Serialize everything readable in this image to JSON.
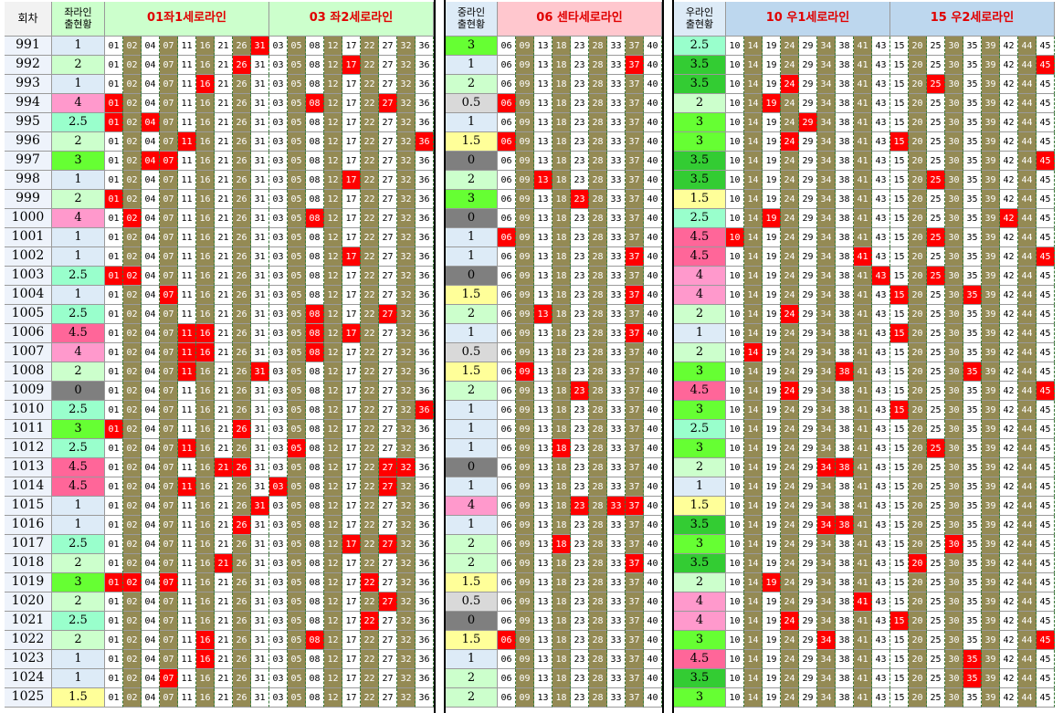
{
  "header": {
    "round": "회차",
    "sections": [
      {
        "status_label": "좌라인\n출현황",
        "groups": [
          {
            "title": "01좌1세로라인",
            "numbers": [
              "01",
              "02",
              "04",
              "07",
              "11",
              "16",
              "21",
              "26",
              "31"
            ]
          },
          {
            "title": "03 좌2세로라인",
            "numbers": [
              "03",
              "05",
              "08",
              "12",
              "17",
              "22",
              "27",
              "32",
              "36"
            ]
          }
        ]
      },
      {
        "status_label": "중라인\n출현황",
        "groups": [
          {
            "title": "06 센타세로라인",
            "numbers": [
              "06",
              "09",
              "13",
              "18",
              "23",
              "28",
              "33",
              "37",
              "40"
            ]
          }
        ]
      },
      {
        "status_label": "우라인\n출현황",
        "groups": [
          {
            "title": "10 우1세로라인",
            "numbers": [
              "10",
              "14",
              "19",
              "24",
              "29",
              "34",
              "38",
              "41",
              "43"
            ]
          },
          {
            "title": "15 우2세로라인",
            "numbers": [
              "15",
              "20",
              "25",
              "30",
              "35",
              "39",
              "42",
              "44",
              "45"
            ]
          }
        ]
      }
    ]
  },
  "status_colors": {
    "0": "#7f7f7f",
    "0.5": "#d9d9d9",
    "1": "#ddebf7",
    "1.5": "#ffff99",
    "2": "#ccffcc",
    "2.5": "#99ffcc",
    "3": "#66ff33",
    "3.5": "#33cc33",
    "4": "#ff99cc",
    "4.5": "#ff6699"
  },
  "rows": [
    {
      "round": 991,
      "status": [
        1,
        3,
        2.5
      ],
      "hits": [
        [
          8
        ],
        [],
        [],
        [],
        []
      ]
    },
    {
      "round": 992,
      "status": [
        2,
        1,
        3.5
      ],
      "hits": [
        [
          7
        ],
        [
          4
        ],
        [
          7
        ],
        [],
        [
          8
        ]
      ]
    },
    {
      "round": 993,
      "status": [
        1,
        2,
        3.5
      ],
      "hits": [
        [
          5
        ],
        [],
        [],
        [
          3
        ],
        [
          2
        ]
      ]
    },
    {
      "round": 994,
      "status": [
        4,
        0.5,
        2
      ],
      "hits": [
        [
          0
        ],
        [
          2,
          6
        ],
        [
          0
        ],
        [
          2
        ],
        []
      ]
    },
    {
      "round": 995,
      "status": [
        2.5,
        1,
        3
      ],
      "hits": [
        [
          0,
          2
        ],
        [],
        [],
        [
          4
        ],
        []
      ]
    },
    {
      "round": 996,
      "status": [
        2,
        1.5,
        3
      ],
      "hits": [
        [
          4
        ],
        [
          8
        ],
        [
          0
        ],
        [
          3
        ],
        [
          0
        ]
      ]
    },
    {
      "round": 997,
      "status": [
        3,
        0,
        3.5
      ],
      "hits": [
        [
          2,
          3
        ],
        [],
        [],
        [],
        [
          8
        ]
      ]
    },
    {
      "round": 998,
      "status": [
        1,
        2,
        3.5
      ],
      "hits": [
        [],
        [
          4
        ],
        [
          2
        ],
        [],
        [
          2
        ]
      ]
    },
    {
      "round": 999,
      "status": [
        2,
        3,
        1.5
      ],
      "hits": [
        [
          0
        ],
        [],
        [
          4
        ],
        [],
        []
      ]
    },
    {
      "round": 1000,
      "status": [
        4,
        0,
        2.5
      ],
      "hits": [
        [
          1
        ],
        [
          2
        ],
        [],
        [
          2
        ],
        [
          6
        ]
      ]
    },
    {
      "round": 1001,
      "status": [
        1,
        1,
        4.5
      ],
      "hits": [
        [],
        [],
        [
          0
        ],
        [
          0
        ],
        [
          2
        ]
      ]
    },
    {
      "round": 1002,
      "status": [
        1,
        1,
        4.5
      ],
      "hits": [
        [],
        [
          4
        ],
        [
          7
        ],
        [
          7
        ],
        [
          8
        ]
      ]
    },
    {
      "round": 1003,
      "status": [
        2.5,
        0,
        4
      ],
      "hits": [
        [
          0,
          1
        ],
        [],
        [],
        [
          8
        ],
        [
          2
        ]
      ]
    },
    {
      "round": 1004,
      "status": [
        1,
        1.5,
        4
      ],
      "hits": [
        [
          3
        ],
        [],
        [
          7
        ],
        [],
        [
          0,
          4
        ]
      ]
    },
    {
      "round": 1005,
      "status": [
        2.5,
        2,
        2
      ],
      "hits": [
        [],
        [
          2,
          6
        ],
        [
          2
        ],
        [
          3
        ],
        []
      ]
    },
    {
      "round": 1006,
      "status": [
        4.5,
        1,
        1
      ],
      "hits": [
        [
          4,
          5
        ],
        [
          2,
          4
        ],
        [
          7
        ],
        [],
        [
          0
        ]
      ]
    },
    {
      "round": 1007,
      "status": [
        4,
        0.5,
        2
      ],
      "hits": [
        [
          4,
          5
        ],
        [
          2
        ],
        [],
        [
          1
        ],
        []
      ]
    },
    {
      "round": 1008,
      "status": [
        2,
        1.5,
        3
      ],
      "hits": [
        [
          4,
          8
        ],
        [],
        [
          1
        ],
        [
          6
        ],
        [
          4
        ]
      ]
    },
    {
      "round": 1009,
      "status": [
        0,
        2,
        4.5
      ],
      "hits": [
        [],
        [],
        [
          4
        ],
        [
          3
        ],
        [
          8
        ]
      ]
    },
    {
      "round": 1010,
      "status": [
        2.5,
        1,
        3
      ],
      "hits": [
        [],
        [
          8
        ],
        [],
        [],
        [
          0
        ]
      ]
    },
    {
      "round": 1011,
      "status": [
        3,
        1,
        2.5
      ],
      "hits": [
        [
          0,
          7
        ],
        [],
        [],
        [],
        []
      ]
    },
    {
      "round": 1012,
      "status": [
        2.5,
        1,
        3
      ],
      "hits": [
        [
          4
        ],
        [
          1
        ],
        [
          3
        ],
        [],
        [
          2
        ]
      ]
    },
    {
      "round": 1013,
      "status": [
        4.5,
        0,
        2
      ],
      "hits": [
        [
          6,
          7
        ],
        [
          6,
          7
        ],
        [],
        [
          5,
          6
        ],
        []
      ]
    },
    {
      "round": 1014,
      "status": [
        4.5,
        1,
        1
      ],
      "hits": [
        [
          4
        ],
        [
          0,
          6
        ],
        [],
        [],
        []
      ]
    },
    {
      "round": 1015,
      "status": [
        1,
        4,
        1.5
      ],
      "hits": [
        [
          8
        ],
        [],
        [
          4,
          6,
          7
        ],
        [],
        []
      ]
    },
    {
      "round": 1016,
      "status": [
        1,
        1,
        3.5
      ],
      "hits": [
        [
          7
        ],
        [],
        [],
        [
          5,
          6
        ],
        []
      ]
    },
    {
      "round": 1017,
      "status": [
        2.5,
        2,
        3
      ],
      "hits": [
        [],
        [
          4,
          6
        ],
        [
          3
        ],
        [],
        [
          3
        ]
      ]
    },
    {
      "round": 1018,
      "status": [
        2,
        2,
        3.5
      ],
      "hits": [
        [
          6
        ],
        [],
        [
          7
        ],
        [],
        [
          1
        ]
      ]
    },
    {
      "round": 1019,
      "status": [
        3,
        1.5,
        2
      ],
      "hits": [
        [
          0,
          1,
          3
        ],
        [
          5
        ],
        [],
        [
          2
        ],
        []
      ]
    },
    {
      "round": 1020,
      "status": [
        2,
        0.5,
        4
      ],
      "hits": [
        [],
        [
          6
        ],
        [],
        [
          7
        ],
        []
      ]
    },
    {
      "round": 1021,
      "status": [
        2.5,
        0,
        4
      ],
      "hits": [
        [],
        [
          5
        ],
        [],
        [
          3
        ],
        [
          0
        ]
      ]
    },
    {
      "round": 1022,
      "status": [
        2,
        1.5,
        3
      ],
      "hits": [
        [
          5
        ],
        [
          2
        ],
        [
          0
        ],
        [
          5
        ],
        [
          8
        ]
      ]
    },
    {
      "round": 1023,
      "status": [
        1,
        1,
        4.5
      ],
      "hits": [
        [
          5
        ],
        [],
        [],
        [],
        [
          4
        ]
      ]
    },
    {
      "round": 1024,
      "status": [
        1,
        2,
        3.5
      ],
      "hits": [
        [
          3
        ],
        [],
        [],
        [],
        [
          4
        ]
      ]
    },
    {
      "round": 1025,
      "status": [
        1.5,
        2,
        3
      ],
      "hits": [
        [],
        [],
        [],
        [],
        []
      ]
    }
  ]
}
